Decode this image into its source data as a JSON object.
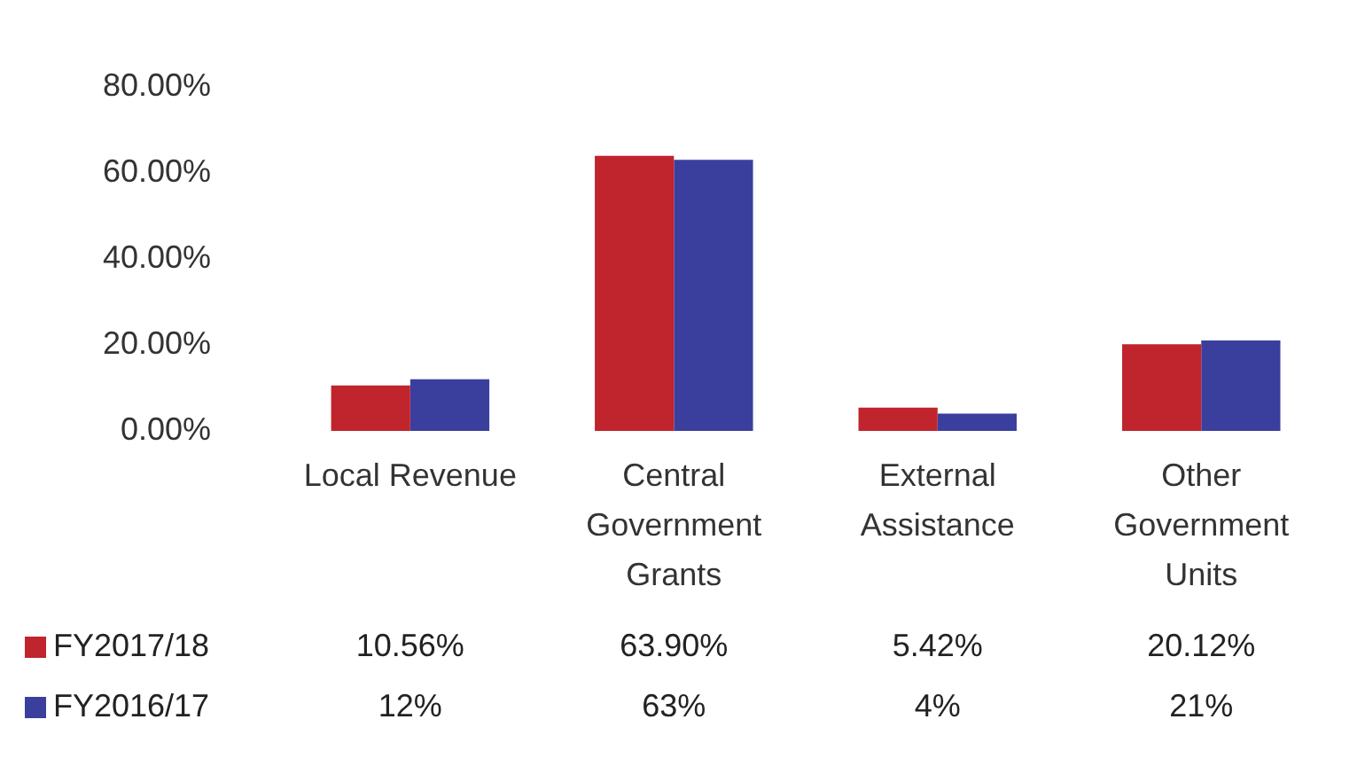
{
  "chart_data": {
    "type": "bar",
    "categories": [
      "Local Revenue",
      "Central Government Grants",
      "External Assistance",
      "Other Government Units"
    ],
    "series": [
      {
        "name": "FY2017/18",
        "color": "#c0242c",
        "values": [
          10.56,
          63.9,
          5.42,
          20.12
        ],
        "value_labels": [
          "10.56%",
          "63.90%",
          "5.42%",
          "20.12%"
        ]
      },
      {
        "name": "FY2016/17",
        "color": "#3a3f9e",
        "values": [
          12,
          63,
          4,
          21
        ],
        "value_labels": [
          "12%",
          "63%",
          "4%",
          "21%"
        ]
      }
    ],
    "ylim": [
      0,
      80
    ],
    "yticks": [
      {
        "value": 0,
        "label": "0.00%"
      },
      {
        "value": 20,
        "label": "20.00%"
      },
      {
        "value": 40,
        "label": "40.00%"
      },
      {
        "value": 60,
        "label": "60.00%"
      },
      {
        "value": 80,
        "label": "80.00%"
      }
    ],
    "grid": false,
    "legend": "bottom left"
  }
}
